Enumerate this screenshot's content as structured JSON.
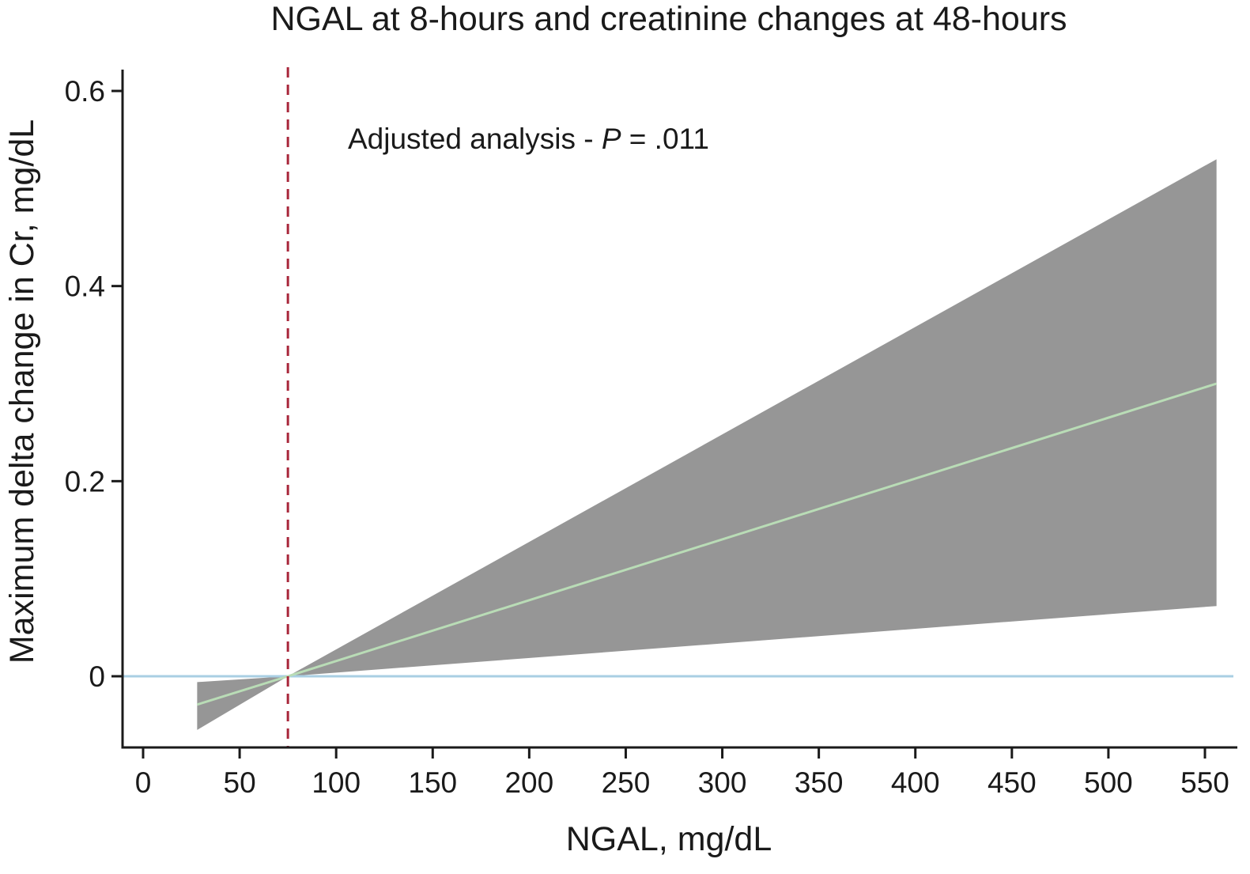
{
  "chart_data": {
    "type": "line",
    "title": "NGAL at 8-hours and creatinine changes at 48-hours",
    "xlabel": "NGAL, mg/dL",
    "ylabel": "Maximum delta change in Cr, mg/dL",
    "xlim": [
      -10,
      565
    ],
    "ylim": [
      -0.072,
      0.62
    ],
    "x_ticks": [
      0,
      50,
      100,
      150,
      200,
      250,
      300,
      350,
      400,
      450,
      500,
      550
    ],
    "x_tick_labels": [
      "0",
      "50",
      "100",
      "150",
      "200",
      "250",
      "300",
      "350",
      "400",
      "450",
      "500",
      "550"
    ],
    "y_ticks": [
      0,
      0.2,
      0.4,
      0.6
    ],
    "y_tick_labels": [
      "0",
      "0.2",
      "0.4",
      "0.6"
    ],
    "grid": false,
    "series": [
      {
        "x": [
          28,
          75,
          556
        ],
        "y": [
          -0.029,
          0,
          0.3
        ],
        "color": "#b9dcb6"
      }
    ],
    "confidence_band": {
      "x": [
        28,
        75,
        556
      ],
      "upper": [
        -0.006,
        0,
        0.53
      ],
      "lower": [
        -0.055,
        0,
        0.072
      ],
      "color": "#969696"
    },
    "reference_lines": {
      "horizontal_y": 0,
      "horizontal_color": "#a9cfe3",
      "vertical_x": 75,
      "vertical_color": "#a8263a"
    },
    "annotation": {
      "prefix": "Adjusted analysis - ",
      "italic": "P",
      "suffix": " = .011"
    }
  }
}
